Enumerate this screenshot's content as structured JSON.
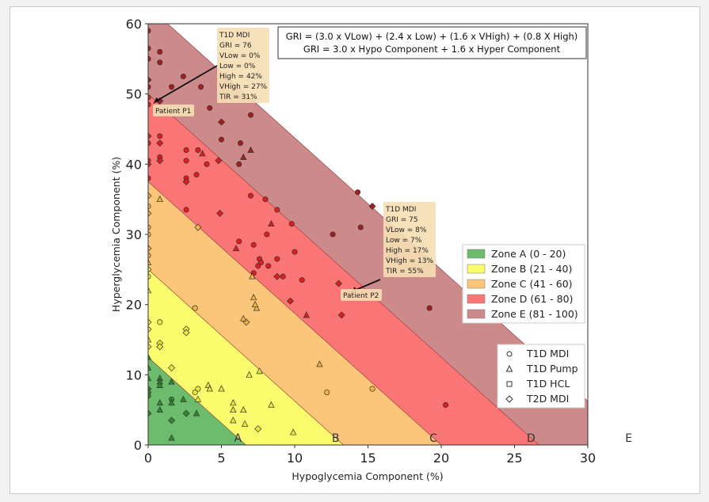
{
  "chart_data": {
    "type": "scatter",
    "xlabel": "Hypoglycemia Component (%)",
    "ylabel": "Hyperglycemia Component (%)",
    "xlim": [
      0,
      30
    ],
    "ylim": [
      0,
      60
    ],
    "xticks": [
      "0",
      "5",
      "10",
      "15",
      "20",
      "25",
      "30"
    ],
    "yticks": [
      "0",
      "10",
      "20",
      "30",
      "40",
      "50",
      "60"
    ],
    "formula": [
      "GRI = (3.0 x VLow) + (2.4 x Low) + (1.6 x VHigh) + (0.8 X High)",
      "GRI = 3.0 x Hypo Component + 1.6 x Hyper Component"
    ],
    "zones": [
      {
        "letter": "A",
        "label": "Zone A (0 - 20)",
        "min": 0,
        "max": 20,
        "color": "#6dbb6d"
      },
      {
        "letter": "B",
        "label": "Zone B (21 - 40)",
        "min": 20,
        "max": 40,
        "color": "#fbfb6e"
      },
      {
        "letter": "C",
        "label": "Zone C (41 - 60)",
        "min": 40,
        "max": 60,
        "color": "#fbc67a"
      },
      {
        "letter": "D",
        "label": "Zone D (61 - 80)",
        "min": 60,
        "max": 80,
        "color": "#fa7575"
      },
      {
        "letter": "E",
        "label": "Zone E (81 - 100)",
        "min": 80,
        "max": 100,
        "color": "#cc8a8a"
      }
    ],
    "marker_legend": [
      {
        "label": "T1D MDI",
        "marker": "circle"
      },
      {
        "label": "T1D Pump",
        "marker": "triangle"
      },
      {
        "label": "T1D HCL",
        "marker": "square"
      },
      {
        "label": "T2D MDI",
        "marker": "diamond"
      }
    ],
    "annotations": [
      {
        "name": "Patient P1",
        "lines": [
          "T1D MDI",
          "GRI = 76",
          "VLow = 0%",
          "Low = 0%",
          "High = 42%",
          "VHigh = 27%",
          "TIR = 31%"
        ],
        "point": [
          0.3,
          48.5
        ]
      },
      {
        "name": "Patient P2",
        "lines": [
          "T1D MDI",
          "GRI = 75",
          "VLow = 8%",
          "Low = 7%",
          "High = 17%",
          "VHigh = 13%",
          "TIR = 55%"
        ],
        "point": [
          13.8,
          21.5
        ]
      }
    ],
    "points": [
      {
        "x": 0,
        "y": 59,
        "m": "o"
      },
      {
        "x": 0,
        "y": 56.5,
        "m": "o"
      },
      {
        "x": 0,
        "y": 55,
        "m": "o"
      },
      {
        "x": 0,
        "y": 52,
        "m": "d"
      },
      {
        "x": 0,
        "y": 51,
        "m": "o"
      },
      {
        "x": 0,
        "y": 49.5,
        "m": "o"
      },
      {
        "x": 0,
        "y": 48.5,
        "m": "o"
      },
      {
        "x": 0.8,
        "y": 56,
        "m": "o"
      },
      {
        "x": 0.8,
        "y": 54.5,
        "m": "o"
      },
      {
        "x": 0.8,
        "y": 49,
        "m": "d"
      },
      {
        "x": 1.6,
        "y": 51,
        "m": "o"
      },
      {
        "x": 2.4,
        "y": 52.5,
        "m": "o"
      },
      {
        "x": 3.6,
        "y": 51,
        "m": "o"
      },
      {
        "x": 4.2,
        "y": 48,
        "m": "o"
      },
      {
        "x": 5,
        "y": 46,
        "m": "d"
      },
      {
        "x": 7,
        "y": 47,
        "m": "o"
      },
      {
        "x": 6.3,
        "y": 43,
        "m": "o"
      },
      {
        "x": 6.5,
        "y": 41,
        "m": "t"
      },
      {
        "x": 7,
        "y": 42,
        "m": "t"
      },
      {
        "x": 5,
        "y": 43.5,
        "m": "o"
      },
      {
        "x": 4,
        "y": 40,
        "m": "o"
      },
      {
        "x": 3.4,
        "y": 42,
        "m": "o"
      },
      {
        "x": 3.7,
        "y": 41.5,
        "m": "t"
      },
      {
        "x": 2.6,
        "y": 42,
        "m": "o"
      },
      {
        "x": 2.6,
        "y": 40.5,
        "m": "o"
      },
      {
        "x": 3.3,
        "y": 38.5,
        "m": "o"
      },
      {
        "x": 2.6,
        "y": 38,
        "m": "o"
      },
      {
        "x": 2.6,
        "y": 37.5,
        "m": "d"
      },
      {
        "x": 0,
        "y": 44,
        "m": "d"
      },
      {
        "x": 0,
        "y": 43,
        "m": "o"
      },
      {
        "x": 0,
        "y": 40.5,
        "m": "o"
      },
      {
        "x": 0,
        "y": 40,
        "m": "d"
      },
      {
        "x": 0,
        "y": 38,
        "m": "o"
      },
      {
        "x": 0,
        "y": 35.5,
        "m": "d"
      },
      {
        "x": 0,
        "y": 34,
        "m": "o"
      },
      {
        "x": 0,
        "y": 33,
        "m": "d"
      },
      {
        "x": 0,
        "y": 31,
        "m": "o"
      },
      {
        "x": 0,
        "y": 30,
        "m": "o"
      },
      {
        "x": 0,
        "y": 28,
        "m": "d"
      },
      {
        "x": 0,
        "y": 27,
        "m": "o"
      },
      {
        "x": 0,
        "y": 26,
        "m": "t"
      },
      {
        "x": 0,
        "y": 25,
        "m": "d"
      },
      {
        "x": 0,
        "y": 24,
        "m": "o"
      },
      {
        "x": 0,
        "y": 22,
        "m": "t"
      },
      {
        "x": 0.8,
        "y": 44,
        "m": "o"
      },
      {
        "x": 0.8,
        "y": 43,
        "m": "d"
      },
      {
        "x": 0.8,
        "y": 41,
        "m": "o"
      },
      {
        "x": 0.8,
        "y": 40.5,
        "m": "d"
      },
      {
        "x": 0.8,
        "y": 35,
        "m": "t"
      },
      {
        "x": 4.8,
        "y": 40.5,
        "m": "d"
      },
      {
        "x": 6.2,
        "y": 40,
        "m": "o"
      },
      {
        "x": 7,
        "y": 35.5,
        "m": "o"
      },
      {
        "x": 8,
        "y": 35,
        "m": "o"
      },
      {
        "x": 8.8,
        "y": 33.5,
        "m": "o"
      },
      {
        "x": 2.6,
        "y": 33.5,
        "m": "o"
      },
      {
        "x": 4.9,
        "y": 33,
        "m": "d"
      },
      {
        "x": 3.4,
        "y": 31,
        "m": "d"
      },
      {
        "x": 6.2,
        "y": 29,
        "m": "o"
      },
      {
        "x": 7.2,
        "y": 28.5,
        "m": "o"
      },
      {
        "x": 8.4,
        "y": 31.5,
        "m": "t"
      },
      {
        "x": 6,
        "y": 28,
        "m": "t"
      },
      {
        "x": 9.8,
        "y": 31.5,
        "m": "o"
      },
      {
        "x": 8.1,
        "y": 30,
        "m": "o"
      },
      {
        "x": 7.6,
        "y": 26.5,
        "m": "o"
      },
      {
        "x": 7.7,
        "y": 26,
        "m": "o"
      },
      {
        "x": 7.5,
        "y": 25.5,
        "m": "o"
      },
      {
        "x": 7.2,
        "y": 24.5,
        "m": "o"
      },
      {
        "x": 7.1,
        "y": 24,
        "m": "t"
      },
      {
        "x": 8.2,
        "y": 25.5,
        "m": "o"
      },
      {
        "x": 8.8,
        "y": 26.5,
        "m": "o"
      },
      {
        "x": 9.2,
        "y": 24,
        "m": "o"
      },
      {
        "x": 8.8,
        "y": 24,
        "m": "d"
      },
      {
        "x": 10,
        "y": 27.5,
        "m": "o"
      },
      {
        "x": 10.5,
        "y": 23.5,
        "m": "o"
      },
      {
        "x": 13,
        "y": 23,
        "m": "d"
      },
      {
        "x": 13.8,
        "y": 21.5,
        "m": "o"
      },
      {
        "x": 9.7,
        "y": 20.5,
        "m": "d"
      },
      {
        "x": 10.8,
        "y": 18.5,
        "m": "t"
      },
      {
        "x": 13.2,
        "y": 18.5,
        "m": "d"
      },
      {
        "x": 12.6,
        "y": 30,
        "m": "o"
      },
      {
        "x": 15.3,
        "y": 34,
        "m": "d"
      },
      {
        "x": 14.3,
        "y": 36,
        "m": "o"
      },
      {
        "x": 14.5,
        "y": 31,
        "m": "o"
      },
      {
        "x": 16.4,
        "y": 26.5,
        "m": "o"
      },
      {
        "x": 19.2,
        "y": 19.5,
        "m": "o"
      },
      {
        "x": 15.3,
        "y": 8,
        "m": "o"
      },
      {
        "x": 12.2,
        "y": 7.5,
        "m": "o"
      },
      {
        "x": 20.3,
        "y": 5.7,
        "m": "o"
      },
      {
        "x": 11.7,
        "y": 11.5,
        "m": "t"
      },
      {
        "x": 7.6,
        "y": 10.5,
        "m": "t"
      },
      {
        "x": 6.9,
        "y": 10,
        "m": "t"
      },
      {
        "x": 7.4,
        "y": 19.5,
        "m": "t"
      },
      {
        "x": 7.3,
        "y": 20,
        "m": "t"
      },
      {
        "x": 7.2,
        "y": 21,
        "m": "t"
      },
      {
        "x": 6.7,
        "y": 17.5,
        "m": "d"
      },
      {
        "x": 6.5,
        "y": 18,
        "m": "t"
      },
      {
        "x": 3.2,
        "y": 19.5,
        "m": "o"
      },
      {
        "x": 2.6,
        "y": 16.5,
        "m": "d"
      },
      {
        "x": 2.6,
        "y": 16,
        "m": "d"
      },
      {
        "x": 0.8,
        "y": 17.5,
        "m": "o"
      },
      {
        "x": 0,
        "y": 17.5,
        "m": "d"
      },
      {
        "x": 0,
        "y": 16.5,
        "m": "d"
      },
      {
        "x": 0,
        "y": 15,
        "m": "t"
      },
      {
        "x": 0.8,
        "y": 14.5,
        "m": "d"
      },
      {
        "x": 0.8,
        "y": 14,
        "m": "d"
      },
      {
        "x": 0,
        "y": 14,
        "m": "d"
      },
      {
        "x": 0,
        "y": 12.5,
        "m": "t"
      },
      {
        "x": 0,
        "y": 11,
        "m": "t"
      },
      {
        "x": 0,
        "y": 9.5,
        "m": "t"
      },
      {
        "x": 0,
        "y": 8,
        "m": "d"
      },
      {
        "x": 0,
        "y": 7.5,
        "m": "d"
      },
      {
        "x": 0,
        "y": 7,
        "m": "o"
      },
      {
        "x": 0,
        "y": 4.5,
        "m": "d"
      },
      {
        "x": 0.8,
        "y": 9.5,
        "m": "t"
      },
      {
        "x": 0.8,
        "y": 9,
        "m": "t"
      },
      {
        "x": 0.8,
        "y": 8.5,
        "m": "t"
      },
      {
        "x": 0.8,
        "y": 6,
        "m": "t"
      },
      {
        "x": 0.8,
        "y": 5,
        "m": "t"
      },
      {
        "x": 1.6,
        "y": 11,
        "m": "d"
      },
      {
        "x": 1.6,
        "y": 9,
        "m": "t"
      },
      {
        "x": 1.6,
        "y": 6.5,
        "m": "o"
      },
      {
        "x": 1.6,
        "y": 6,
        "m": "t"
      },
      {
        "x": 1.6,
        "y": 3.5,
        "m": "d"
      },
      {
        "x": 1.6,
        "y": 1,
        "m": "t"
      },
      {
        "x": 2.4,
        "y": 6.5,
        "m": "t"
      },
      {
        "x": 2.6,
        "y": 4.5,
        "m": "d"
      },
      {
        "x": 3.2,
        "y": 7.5,
        "m": "o"
      },
      {
        "x": 3.4,
        "y": 6.5,
        "m": "t"
      },
      {
        "x": 3.3,
        "y": 4.5,
        "m": "t"
      },
      {
        "x": 3.4,
        "y": 8,
        "m": "o"
      },
      {
        "x": 4.1,
        "y": 8.5,
        "m": "t"
      },
      {
        "x": 4.2,
        "y": 8,
        "m": "t"
      },
      {
        "x": 5,
        "y": 8,
        "m": "t"
      },
      {
        "x": 5.8,
        "y": 6,
        "m": "t"
      },
      {
        "x": 5.8,
        "y": 5,
        "m": "t"
      },
      {
        "x": 5.8,
        "y": 3.5,
        "m": "t"
      },
      {
        "x": 6.5,
        "y": 5,
        "m": "t"
      },
      {
        "x": 6.6,
        "y": 3,
        "m": "t"
      },
      {
        "x": 7.5,
        "y": 2.3,
        "m": "d"
      },
      {
        "x": 8.4,
        "y": 5.7,
        "m": "t"
      },
      {
        "x": 9.9,
        "y": 1.8,
        "m": "t"
      }
    ]
  }
}
